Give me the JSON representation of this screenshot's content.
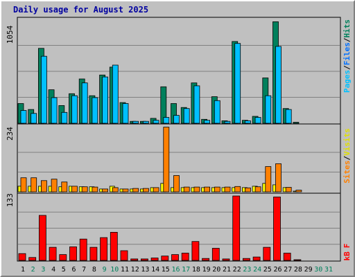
{
  "title": "Daily usage for August 2025",
  "colors": {
    "background": "#c0c0c0",
    "title": "#0000a0",
    "hits": "#00805c",
    "files": "#00c0ff",
    "pages": "#00e0ff",
    "sites": "#ff8000",
    "visits": "#ffff00",
    "kbytes": "#ff0000",
    "weekday_label": "#000000",
    "weekend_label": "#00805c",
    "separator": "#000000"
  },
  "panels": {
    "top": {
      "max_label": "1054",
      "legend": [
        "Pages",
        "/",
        "Files",
        "/",
        "Hits"
      ]
    },
    "middle": {
      "max_label": "234",
      "legend": [
        "Sites",
        "/",
        "Visits"
      ]
    },
    "bottom": {
      "max_label": "133",
      "legend": [
        "kB",
        "F"
      ]
    }
  },
  "chart_data": [
    {
      "type": "bar",
      "panel": "top",
      "title": "Daily usage for August 2025",
      "ylim": [
        0,
        1054
      ],
      "categories": [
        "1",
        "2",
        "3",
        "4",
        "5",
        "6",
        "7",
        "8",
        "9",
        "10",
        "11",
        "12",
        "13",
        "14",
        "15",
        "16",
        "17",
        "18",
        "19",
        "20",
        "21",
        "22",
        "23",
        "24",
        "25",
        "26",
        "27",
        "28",
        "29",
        "30",
        "31"
      ],
      "series": [
        {
          "name": "Hits",
          "values": [
            200,
            140,
            760,
            340,
            180,
            300,
            450,
            280,
            490,
            570,
            210,
            20,
            20,
            50,
            370,
            200,
            160,
            410,
            40,
            270,
            25,
            830,
            30,
            70,
            460,
            1030,
            150,
            10,
            0,
            0,
            0
          ]
        },
        {
          "name": "Files",
          "values": [
            130,
            100,
            680,
            260,
            110,
            280,
            410,
            260,
            470,
            590,
            200,
            20,
            20,
            30,
            60,
            80,
            150,
            380,
            30,
            230,
            20,
            810,
            25,
            60,
            280,
            780,
            140,
            0,
            0,
            0,
            0
          ]
        }
      ]
    },
    {
      "type": "bar",
      "panel": "middle",
      "ylim": [
        0,
        234
      ],
      "categories": [
        "1",
        "2",
        "3",
        "4",
        "5",
        "6",
        "7",
        "8",
        "9",
        "10",
        "11",
        "12",
        "13",
        "14",
        "15",
        "16",
        "17",
        "18",
        "19",
        "20",
        "21",
        "22",
        "23",
        "24",
        "25",
        "26",
        "27",
        "28",
        "29",
        "30",
        "31"
      ],
      "series": [
        {
          "name": "Visits",
          "values": [
            20,
            20,
            20,
            20,
            18,
            20,
            18,
            18,
            10,
            20,
            10,
            10,
            10,
            15,
            30,
            15,
            15,
            15,
            15,
            15,
            15,
            15,
            15,
            20,
            30,
            25,
            15,
            2,
            0,
            0,
            0
          ]
        },
        {
          "name": "Sites",
          "values": [
            50,
            50,
            40,
            45,
            35,
            20,
            18,
            17,
            10,
            15,
            10,
            12,
            12,
            15,
            230,
            58,
            17,
            17,
            17,
            17,
            17,
            19,
            14,
            18,
            90,
            100,
            16,
            6,
            0,
            0,
            0
          ]
        }
      ]
    },
    {
      "type": "bar",
      "panel": "bottom",
      "ylim": [
        0,
        133
      ],
      "categories": [
        "1",
        "2",
        "3",
        "4",
        "5",
        "6",
        "7",
        "8",
        "9",
        "10",
        "11",
        "12",
        "13",
        "14",
        "15",
        "16",
        "17",
        "18",
        "19",
        "20",
        "21",
        "22",
        "23",
        "24",
        "25",
        "26",
        "27",
        "28",
        "29",
        "30",
        "31"
      ],
      "series": [
        {
          "name": "kB F",
          "values": [
            14,
            6,
            93,
            27,
            12,
            28,
            44,
            27,
            47,
            58,
            20,
            3,
            3,
            5,
            9,
            12,
            15,
            39,
            4,
            25,
            3,
            133,
            4,
            7,
            27,
            131,
            15,
            1,
            0,
            0,
            0
          ]
        }
      ]
    }
  ]
}
